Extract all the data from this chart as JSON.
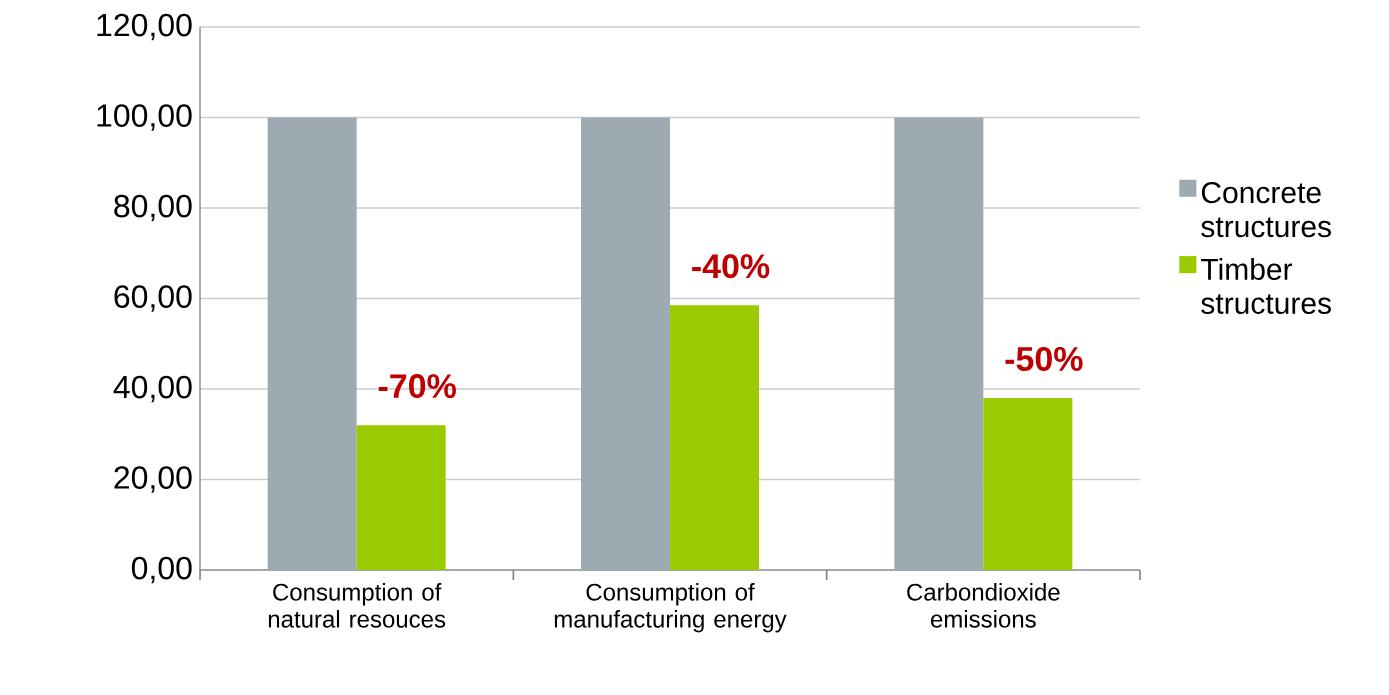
{
  "chart_data": {
    "type": "bar",
    "categories": [
      "Consumption of natural resouces",
      "Consumption of manufacturing energy",
      "Carbondioxide emissions"
    ],
    "series": [
      {
        "name": "Concrete structures",
        "color": "#9eaab2",
        "values": [
          100,
          100,
          100
        ]
      },
      {
        "name": "Timber structures",
        "color": "#99cc00",
        "values": [
          32,
          58.5,
          38
        ]
      }
    ],
    "ylim": [
      0,
      120
    ],
    "yticks": [
      {
        "value": 0,
        "label": "0,00"
      },
      {
        "value": 20,
        "label": "20,00"
      },
      {
        "value": 40,
        "label": "40,00"
      },
      {
        "value": 60,
        "label": "60,00"
      },
      {
        "value": 80,
        "label": "80,00"
      },
      {
        "value": 100,
        "label": "100,00"
      },
      {
        "value": 120,
        "label": "120,00"
      }
    ],
    "grid": "y",
    "legend": "right",
    "annotations": [
      {
        "text": "-70%",
        "x": "Consumption of natural resouces",
        "y": 32
      },
      {
        "text": "-40%",
        "x": "Consumption of manufacturing energy",
        "y": 58.5
      },
      {
        "text": "-50%",
        "x": "Carbondioxide emissions",
        "y": 38
      }
    ]
  }
}
